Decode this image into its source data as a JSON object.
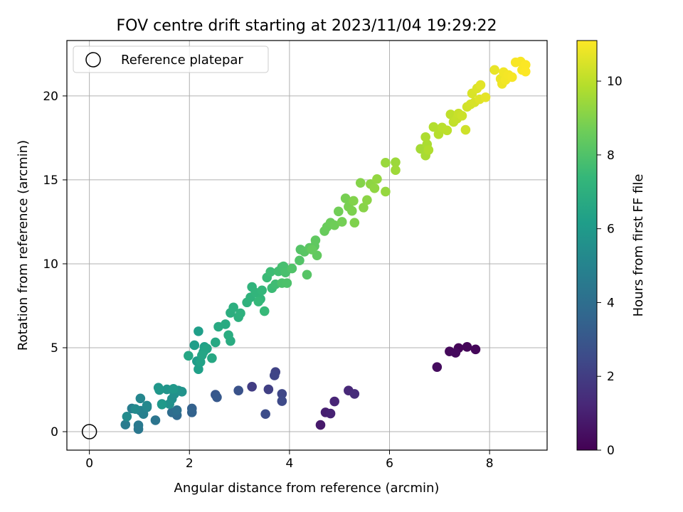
{
  "chart_data": {
    "type": "scatter",
    "title": "FOV centre drift starting at 2023/11/04 19:29:22",
    "xlabel": "Angular distance from reference (arcmin)",
    "ylabel": "Rotation from reference (arcmin)",
    "colorbar_label": "Hours from first FF file",
    "xlim": [
      -0.45,
      9.15
    ],
    "ylim": [
      -1.1,
      23.3
    ],
    "xticks": [
      "0",
      "2",
      "4",
      "6",
      "8"
    ],
    "yticks": [
      "0",
      "5",
      "10",
      "15",
      "20"
    ],
    "colorbar_range": [
      0,
      11.1
    ],
    "colorbar_ticks": [
      "0",
      "2",
      "4",
      "6",
      "8",
      "10"
    ],
    "colormap": "viridis",
    "grid": true,
    "legend": {
      "placement": "top-left",
      "entries": [
        "Reference platepar"
      ]
    },
    "reference_point": {
      "x": 0,
      "y": 0
    },
    "points": [
      [
        7.38,
        4.98,
        0.1
      ],
      [
        7.55,
        5.05,
        0.15
      ],
      [
        7.72,
        4.9,
        0.2
      ],
      [
        7.2,
        4.78,
        0.25
      ],
      [
        7.32,
        4.7,
        0.3
      ],
      [
        6.95,
        3.85,
        0.35
      ],
      [
        4.62,
        0.4,
        0.8
      ],
      [
        4.72,
        1.15,
        0.95
      ],
      [
        4.82,
        1.08,
        1.05
      ],
      [
        4.9,
        1.8,
        1.15
      ],
      [
        5.18,
        2.45,
        1.25
      ],
      [
        5.3,
        2.25,
        1.4
      ],
      [
        3.25,
        2.68,
        2.0
      ],
      [
        3.58,
        2.52,
        2.1
      ],
      [
        3.72,
        3.55,
        2.2
      ],
      [
        3.7,
        3.35,
        2.3
      ],
      [
        3.85,
        2.25,
        2.35
      ],
      [
        3.85,
        1.82,
        2.45
      ],
      [
        3.52,
        1.05,
        2.6
      ],
      [
        2.98,
        2.45,
        2.8
      ],
      [
        2.52,
        2.2,
        3.0
      ],
      [
        2.55,
        2.05,
        3.1
      ],
      [
        2.05,
        1.38,
        3.4
      ],
      [
        2.05,
        1.15,
        3.5
      ],
      [
        1.75,
        0.98,
        3.8
      ],
      [
        1.65,
        1.15,
        3.95
      ],
      [
        1.75,
        1.28,
        4.1
      ],
      [
        1.32,
        0.68,
        4.3
      ],
      [
        0.98,
        0.15,
        4.4
      ],
      [
        0.98,
        0.38,
        4.5
      ],
      [
        0.72,
        0.42,
        4.65
      ],
      [
        0.85,
        1.38,
        4.7
      ],
      [
        1.08,
        1.05,
        4.8
      ],
      [
        1.02,
        1.25,
        4.9
      ],
      [
        1.15,
        1.45,
        5.0
      ],
      [
        1.02,
        1.98,
        5.1
      ],
      [
        1.15,
        1.55,
        5.2
      ],
      [
        0.92,
        1.35,
        5.3
      ],
      [
        0.75,
        0.9,
        5.35
      ],
      [
        1.45,
        1.65,
        5.4
      ],
      [
        1.65,
        1.95,
        5.5
      ],
      [
        1.7,
        2.25,
        5.55
      ],
      [
        1.6,
        1.65,
        5.6
      ],
      [
        1.78,
        2.45,
        5.65
      ],
      [
        1.85,
        2.38,
        5.7
      ],
      [
        1.55,
        2.52,
        5.75
      ],
      [
        1.4,
        2.48,
        5.8
      ],
      [
        1.38,
        2.62,
        5.85
      ],
      [
        1.68,
        2.55,
        5.9
      ],
      [
        1.45,
        1.62,
        5.95
      ],
      [
        2.15,
        4.2,
        6.1
      ],
      [
        2.1,
        5.15,
        6.15
      ],
      [
        2.18,
        5.98,
        6.2
      ],
      [
        2.18,
        3.72,
        6.25
      ],
      [
        2.3,
        5.05,
        6.3
      ],
      [
        2.22,
        4.15,
        6.35
      ],
      [
        2.28,
        4.75,
        6.4
      ],
      [
        2.35,
        4.95,
        6.45
      ],
      [
        2.25,
        4.55,
        6.5
      ],
      [
        1.98,
        4.52,
        6.55
      ],
      [
        2.45,
        4.38,
        6.6
      ],
      [
        2.52,
        5.32,
        6.65
      ],
      [
        2.58,
        6.25,
        6.7
      ],
      [
        2.72,
        6.4,
        6.75
      ],
      [
        2.82,
        5.4,
        6.8
      ],
      [
        2.78,
        5.75,
        6.85
      ],
      [
        2.82,
        7.08,
        6.9
      ],
      [
        2.88,
        7.4,
        6.95
      ],
      [
        2.98,
        6.82,
        7.0
      ],
      [
        3.02,
        7.05,
        7.05
      ],
      [
        3.15,
        7.7,
        7.1
      ],
      [
        3.22,
        8.0,
        7.15
      ],
      [
        3.25,
        8.62,
        7.2
      ],
      [
        3.32,
        8.28,
        7.25
      ],
      [
        3.42,
        7.9,
        7.3
      ],
      [
        3.45,
        8.42,
        7.35
      ],
      [
        3.38,
        7.75,
        7.4
      ],
      [
        3.5,
        7.18,
        7.45
      ],
      [
        3.55,
        9.18,
        7.5
      ],
      [
        3.65,
        8.55,
        7.55
      ],
      [
        3.62,
        9.52,
        7.6
      ],
      [
        3.72,
        8.78,
        7.65
      ],
      [
        3.78,
        9.55,
        7.7
      ],
      [
        3.85,
        9.8,
        7.75
      ],
      [
        3.88,
        9.85,
        7.8
      ],
      [
        3.92,
        9.48,
        7.85
      ],
      [
        3.85,
        8.85,
        7.9
      ],
      [
        3.95,
        8.85,
        7.95
      ],
      [
        4.05,
        9.72,
        8.0
      ],
      [
        4.2,
        10.2,
        8.05
      ],
      [
        4.22,
        10.85,
        8.1
      ],
      [
        4.35,
        9.35,
        8.15
      ],
      [
        4.3,
        10.72,
        8.2
      ],
      [
        4.4,
        10.95,
        8.25
      ],
      [
        4.5,
        11.05,
        8.3
      ],
      [
        4.52,
        11.4,
        8.35
      ],
      [
        4.55,
        10.5,
        8.4
      ],
      [
        4.45,
        10.85,
        8.45
      ],
      [
        4.7,
        11.95,
        8.5
      ],
      [
        4.75,
        12.2,
        8.55
      ],
      [
        4.82,
        12.45,
        8.6
      ],
      [
        4.9,
        12.3,
        8.65
      ],
      [
        4.98,
        13.12,
        8.7
      ],
      [
        5.05,
        12.5,
        8.75
      ],
      [
        5.12,
        13.9,
        8.8
      ],
      [
        5.18,
        13.4,
        8.85
      ],
      [
        5.25,
        13.15,
        8.9
      ],
      [
        5.3,
        12.45,
        8.95
      ],
      [
        5.28,
        13.75,
        9.0
      ],
      [
        5.42,
        14.82,
        9.05
      ],
      [
        5.48,
        13.35,
        9.1
      ],
      [
        5.55,
        13.8,
        9.15
      ],
      [
        5.62,
        14.75,
        9.2
      ],
      [
        5.7,
        14.5,
        9.25
      ],
      [
        5.75,
        15.05,
        9.3
      ],
      [
        5.92,
        14.3,
        9.35
      ],
      [
        5.92,
        16.02,
        9.4
      ],
      [
        6.12,
        16.05,
        9.45
      ],
      [
        6.12,
        15.58,
        9.5
      ],
      [
        6.62,
        16.85,
        9.6
      ],
      [
        6.72,
        16.45,
        9.65
      ],
      [
        6.75,
        17.12,
        9.7
      ],
      [
        6.72,
        17.55,
        9.75
      ],
      [
        6.78,
        16.78,
        9.8
      ],
      [
        6.88,
        18.15,
        9.85
      ],
      [
        6.98,
        17.72,
        9.9
      ],
      [
        7.05,
        18.12,
        9.95
      ],
      [
        7.15,
        17.95,
        10.0
      ],
      [
        7.22,
        18.9,
        10.05
      ],
      [
        7.28,
        18.45,
        10.1
      ],
      [
        7.35,
        18.65,
        10.15
      ],
      [
        7.38,
        18.95,
        10.2
      ],
      [
        7.45,
        18.82,
        10.25
      ],
      [
        7.52,
        17.98,
        10.3
      ],
      [
        7.55,
        19.35,
        10.35
      ],
      [
        7.62,
        19.5,
        10.4
      ],
      [
        7.7,
        19.62,
        10.45
      ],
      [
        7.65,
        20.15,
        10.5
      ],
      [
        7.75,
        20.45,
        10.55
      ],
      [
        7.8,
        19.8,
        10.6
      ],
      [
        7.82,
        20.65,
        10.65
      ],
      [
        7.92,
        19.92,
        10.7
      ],
      [
        8.1,
        21.55,
        10.75
      ],
      [
        8.22,
        21.02,
        10.8
      ],
      [
        8.25,
        20.72,
        10.85
      ],
      [
        8.28,
        21.42,
        10.9
      ],
      [
        8.32,
        20.95,
        10.92
      ],
      [
        8.38,
        21.25,
        10.95
      ],
      [
        8.45,
        21.12,
        10.98
      ],
      [
        8.52,
        22.0,
        11.0
      ],
      [
        8.62,
        22.05,
        11.02
      ],
      [
        8.65,
        21.55,
        11.04
      ],
      [
        8.72,
        21.85,
        11.06
      ],
      [
        8.72,
        21.45,
        11.08
      ]
    ]
  }
}
